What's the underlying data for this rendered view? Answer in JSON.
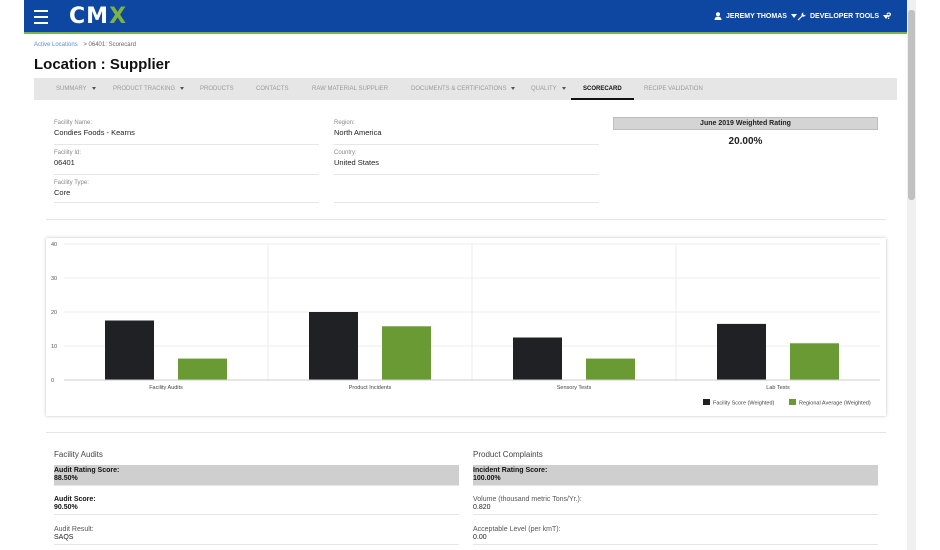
{
  "header": {
    "logo": {
      "left": "C",
      "mid": "M",
      "x": "X"
    },
    "user_name": "JEREMY THOMAS",
    "dev_tools": "DEVELOPER TOOLS",
    "help": "?"
  },
  "breadcrumb": {
    "link": "Active Locations",
    "current": "> 06401: Scorecard"
  },
  "page_title": "Location : Supplier",
  "tabs": [
    {
      "label": "SUMMARY",
      "dropdown": true
    },
    {
      "label": "PRODUCT TRACKING",
      "dropdown": true
    },
    {
      "label": "PRODUCTS",
      "dropdown": false
    },
    {
      "label": "CONTACTS",
      "dropdown": false
    },
    {
      "label": "RAW MATERIAL SUPPLIER",
      "dropdown": false
    },
    {
      "label": "DOCUMENTS & CERTIFICATIONS",
      "dropdown": true
    },
    {
      "label": "QUALITY",
      "dropdown": true
    },
    {
      "label": "SCORECARD",
      "dropdown": false,
      "active": true
    },
    {
      "label": "RECIPE VALIDATION",
      "dropdown": false
    }
  ],
  "facility": {
    "name_label": "Facility Name:",
    "name": "Condies Foods - Kearns",
    "id_label": "Facility Id:",
    "id": "06401",
    "type_label": "Facility Type:",
    "type": "Core",
    "region_label": "Region:",
    "region": "North America",
    "country_label": "Country:",
    "country": "United States"
  },
  "weighted_rating": {
    "title": "June 2019 Weighted Rating",
    "value": "20.00%"
  },
  "chart_data": {
    "type": "bar",
    "categories": [
      "Facility Audits",
      "Product Incidents",
      "Sensory Tests",
      "Lab Tests"
    ],
    "series": [
      {
        "name": "Facility Score (Weighted)",
        "values": [
          17.5,
          20,
          12.5,
          16.5
        ],
        "color": "#1f2124"
      },
      {
        "name": "Regional Average (Weighted)",
        "values": [
          6.3,
          15.8,
          6.3,
          10.8
        ],
        "color": "#6a9a34"
      }
    ],
    "ylim": [
      0,
      40
    ],
    "yticks": [
      "0",
      "10",
      "20",
      "30",
      "40"
    ],
    "grid": true,
    "legend": "bottom-right"
  },
  "facility_audits": {
    "title": "Facility Audits",
    "rating_label": "Audit Rating Score:",
    "rating": "88.50%",
    "score_label": "Audit Score:",
    "score": "90.50%",
    "result_label": "Audit Result:",
    "result": "SAQS"
  },
  "product_complaints": {
    "title": "Product Complaints",
    "rating_label": "Incident Rating Score:",
    "rating": "100.00%",
    "volume_label": "Volume (thousand metric Tons/Yr.):",
    "volume": "0.820",
    "acceptable_label": "Acceptable Level (per kmT):",
    "acceptable": "0.00"
  },
  "colors": {
    "header_blue": "#0d47a1",
    "accent_green": "#7cb342"
  }
}
